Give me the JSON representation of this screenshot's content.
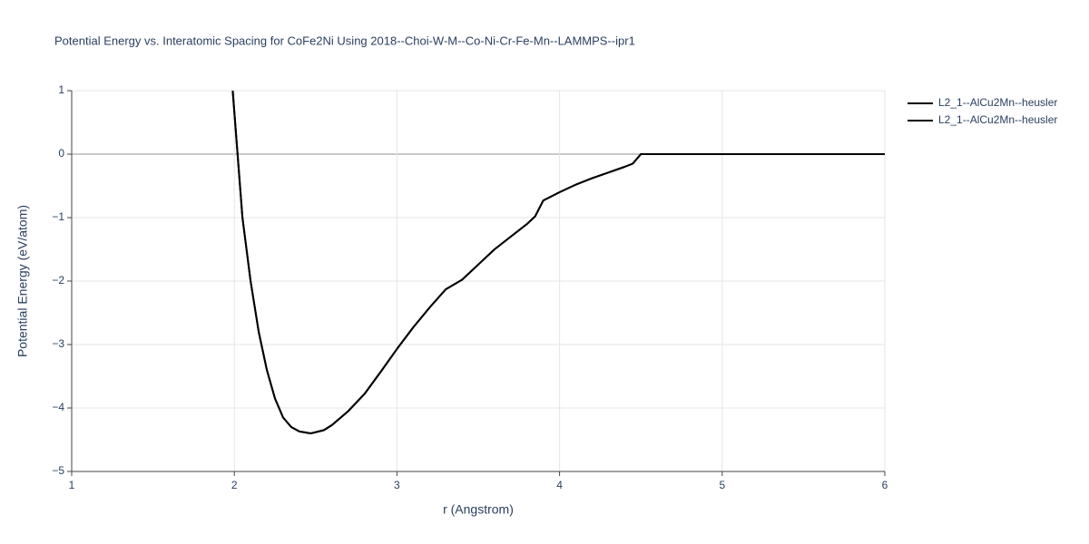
{
  "chart_data": {
    "type": "line",
    "title": "Potential Energy vs. Interatomic Spacing for CoFe2Ni Using 2018--Choi-W-M--Co-Ni-Cr-Fe-Mn--LAMMPS--ipr1",
    "x_label": "r (Angstrom)",
    "y_label": "Potential Energy (eV/atom)",
    "xlim": [
      1,
      6
    ],
    "ylim": [
      -5,
      1
    ],
    "xticks": [
      1,
      2,
      3,
      4,
      5,
      6
    ],
    "yticks": [
      {
        "value": -5,
        "label": "−5"
      },
      {
        "value": -4,
        "label": "−4"
      },
      {
        "value": -3,
        "label": "−3"
      },
      {
        "value": -2,
        "label": "−2"
      },
      {
        "value": -1,
        "label": "−1"
      },
      0,
      1
    ],
    "grid": true,
    "legend": "top-right",
    "x": [
      1.99,
      2.05,
      2.1,
      2.15,
      2.2,
      2.25,
      2.3,
      2.35,
      2.4,
      2.47,
      2.55,
      2.6,
      2.7,
      2.8,
      2.9,
      3.0,
      3.1,
      3.2,
      3.3,
      3.4,
      3.5,
      3.6,
      3.7,
      3.8,
      3.85,
      3.9,
      4.0,
      4.1,
      4.2,
      4.3,
      4.4,
      4.45,
      4.5,
      5.0,
      5.5,
      6.0
    ],
    "series": [
      {
        "name": "L2_1--AlCu2Mn--heusler",
        "color": "#000000",
        "values": [
          1.0,
          -1.0,
          -2.0,
          -2.8,
          -3.4,
          -3.85,
          -4.15,
          -4.3,
          -4.37,
          -4.4,
          -4.35,
          -4.27,
          -4.05,
          -3.78,
          -3.43,
          -3.07,
          -2.73,
          -2.42,
          -2.13,
          -1.98,
          -1.74,
          -1.5,
          -1.3,
          -1.1,
          -0.98,
          -0.73,
          -0.6,
          -0.48,
          -0.38,
          -0.29,
          -0.2,
          -0.15,
          0,
          0,
          0,
          0
        ]
      },
      {
        "name": "L2_1--AlCu2Mn--heusler",
        "color": "#000000",
        "values": [
          1.0,
          -1.0,
          -2.0,
          -2.8,
          -3.4,
          -3.85,
          -4.15,
          -4.3,
          -4.37,
          -4.4,
          -4.35,
          -4.27,
          -4.05,
          -3.78,
          -3.43,
          -3.07,
          -2.73,
          -2.42,
          -2.13,
          -1.98,
          -1.74,
          -1.5,
          -1.3,
          -1.1,
          -0.98,
          -0.73,
          -0.6,
          -0.48,
          -0.38,
          -0.29,
          -0.2,
          -0.15,
          0,
          0,
          0,
          0
        ]
      }
    ]
  }
}
